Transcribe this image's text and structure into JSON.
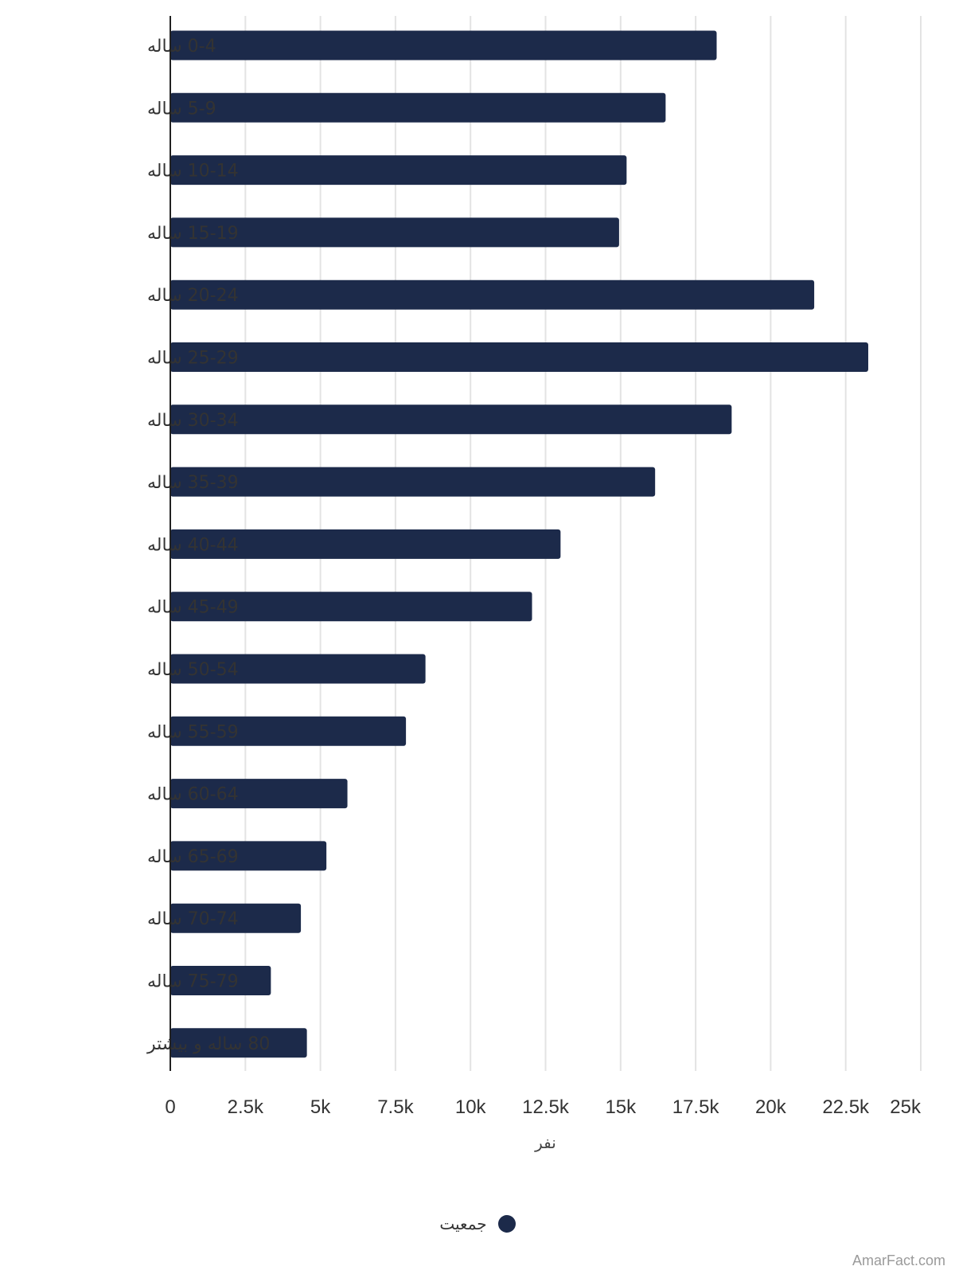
{
  "chart_data": {
    "type": "bar",
    "orientation": "horizontal",
    "categories": [
      "0-4 ساله",
      "5-9 ساله",
      "10-14 ساله",
      "15-19 ساله",
      "20-24 ساله",
      "25-29 ساله",
      "30-34 ساله",
      "35-39 ساله",
      "40-44 ساله",
      "45-49 ساله",
      "50-54 ساله",
      "55-59 ساله",
      "60-64 ساله",
      "65-69 ساله",
      "70-74 ساله",
      "75-79 ساله",
      "80 ساله و بیشتر"
    ],
    "series": [
      {
        "name": "جمعیت",
        "color": "#1c2a4a",
        "values": [
          18200,
          16500,
          15200,
          14950,
          21450,
          23250,
          18700,
          16150,
          13000,
          12050,
          8500,
          7850,
          5900,
          5200,
          4350,
          3350,
          4550
        ]
      }
    ],
    "xlabel": "نفر",
    "ylabel": "",
    "xlim": [
      0,
      25000
    ],
    "x_ticks": [
      0,
      2500,
      5000,
      7500,
      10000,
      12500,
      15000,
      17500,
      20000,
      22500,
      25000
    ],
    "x_tick_labels": [
      "0",
      "2.5k",
      "5k",
      "7.5k",
      "10k",
      "12.5k",
      "15k",
      "17.5k",
      "20k",
      "22.5k",
      "25k"
    ],
    "grid": true,
    "legend_position": "bottom"
  },
  "legend": {
    "label": "جمعیت",
    "color": "#1c2a4a"
  },
  "watermark": "AmarFact.com"
}
